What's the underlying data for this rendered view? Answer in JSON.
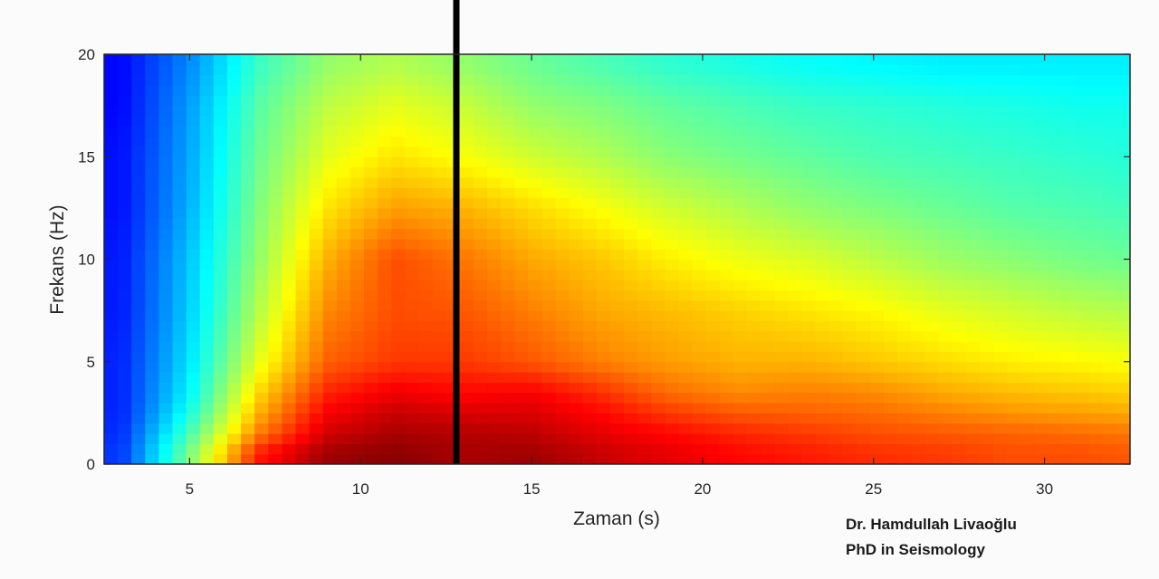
{
  "chart_data": {
    "type": "heatmap",
    "title": "",
    "xlabel": "Zaman (s)",
    "ylabel": "Frekans (Hz)",
    "xlim": [
      2.5,
      32.5
    ],
    "ylim": [
      0,
      20
    ],
    "xticks": [
      5,
      10,
      15,
      20,
      25,
      30
    ],
    "yticks": [
      0,
      5,
      10,
      15,
      20
    ],
    "colormap": "jet",
    "color_range": [
      0,
      1
    ],
    "marker_line": {
      "x": 12.8,
      "color": "#000000"
    },
    "time_bins": [
      3.0,
      5.0,
      7.0,
      9.0,
      11.0,
      13.0,
      15.0,
      17.0,
      19.0,
      21.0,
      23.0,
      25.0,
      27.0,
      29.0,
      31.0,
      32.5
    ],
    "freq_bins": [
      0.5,
      1.5,
      2.5,
      3.5,
      5.0,
      7.5,
      10.0,
      12.5,
      15.0,
      17.5,
      19.5
    ],
    "relative_power": [
      [
        0.18,
        0.5,
        0.85,
        0.97,
        0.99,
        0.96,
        0.97,
        0.93,
        0.9,
        0.87,
        0.85,
        0.83,
        0.82,
        0.8,
        0.8,
        0.79
      ],
      [
        0.17,
        0.45,
        0.75,
        0.92,
        0.96,
        0.95,
        0.94,
        0.9,
        0.87,
        0.84,
        0.82,
        0.8,
        0.79,
        0.78,
        0.77,
        0.76
      ],
      [
        0.16,
        0.4,
        0.7,
        0.88,
        0.93,
        0.91,
        0.91,
        0.87,
        0.82,
        0.79,
        0.78,
        0.77,
        0.75,
        0.73,
        0.72,
        0.71
      ],
      [
        0.16,
        0.37,
        0.66,
        0.84,
        0.89,
        0.87,
        0.88,
        0.83,
        0.77,
        0.74,
        0.75,
        0.74,
        0.71,
        0.69,
        0.68,
        0.67
      ],
      [
        0.16,
        0.35,
        0.6,
        0.78,
        0.82,
        0.82,
        0.79,
        0.75,
        0.72,
        0.7,
        0.7,
        0.68,
        0.66,
        0.64,
        0.63,
        0.62
      ],
      [
        0.15,
        0.33,
        0.55,
        0.74,
        0.8,
        0.79,
        0.75,
        0.71,
        0.69,
        0.67,
        0.65,
        0.63,
        0.6,
        0.58,
        0.56,
        0.55
      ],
      [
        0.15,
        0.32,
        0.52,
        0.7,
        0.8,
        0.76,
        0.71,
        0.68,
        0.64,
        0.61,
        0.59,
        0.56,
        0.53,
        0.51,
        0.49,
        0.48
      ],
      [
        0.14,
        0.3,
        0.5,
        0.65,
        0.72,
        0.7,
        0.66,
        0.62,
        0.58,
        0.55,
        0.52,
        0.5,
        0.48,
        0.46,
        0.45,
        0.44
      ],
      [
        0.14,
        0.29,
        0.48,
        0.6,
        0.65,
        0.62,
        0.58,
        0.55,
        0.51,
        0.49,
        0.47,
        0.45,
        0.44,
        0.43,
        0.42,
        0.41
      ],
      [
        0.13,
        0.28,
        0.46,
        0.56,
        0.6,
        0.57,
        0.52,
        0.5,
        0.47,
        0.45,
        0.43,
        0.42,
        0.41,
        0.4,
        0.39,
        0.39
      ],
      [
        0.13,
        0.26,
        0.43,
        0.52,
        0.55,
        0.52,
        0.48,
        0.45,
        0.42,
        0.4,
        0.38,
        0.37,
        0.36,
        0.36,
        0.36,
        0.36
      ]
    ]
  },
  "credit": {
    "line1": "Dr. Hamdullah Livaoğlu",
    "line2": "PhD in Seismology"
  }
}
